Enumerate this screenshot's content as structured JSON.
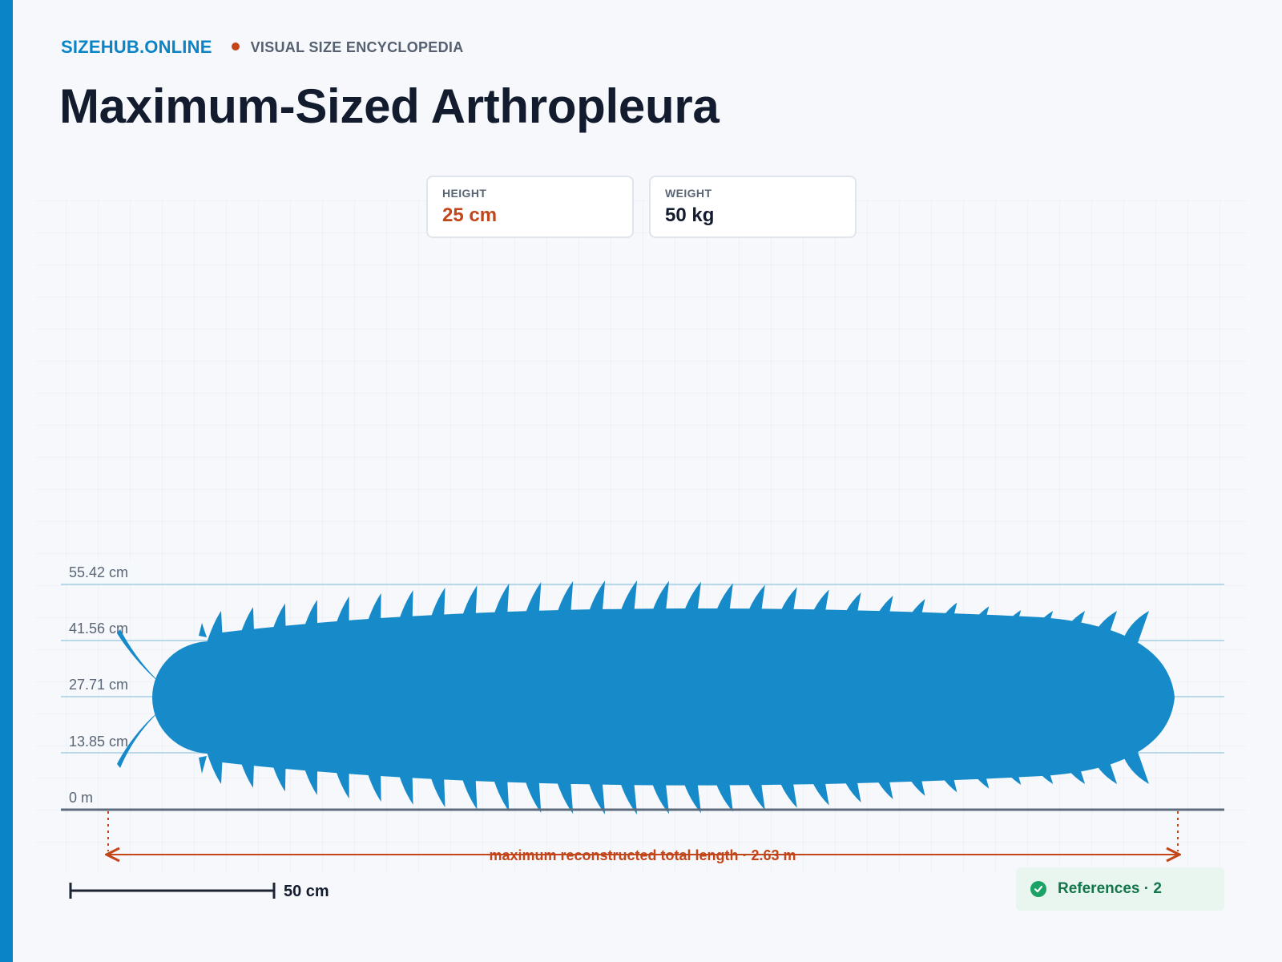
{
  "header": {
    "brand": "SIZEHUB.ONLINE",
    "tagline": "VISUAL SIZE ENCYCLOPEDIA",
    "title": "Maximum-Sized Arthropleura"
  },
  "stats": {
    "height_label": "HEIGHT",
    "height_value": "25 cm",
    "weight_label": "WEIGHT",
    "weight_value": "50 kg"
  },
  "scale": {
    "levels": [
      "55.42 cm",
      "41.56 cm",
      "27.71 cm",
      "13.85 cm",
      "0 m"
    ],
    "length_caption": "maximum reconstructed total length · 2.63 m",
    "scale_bar_label": "50 cm"
  },
  "references": {
    "label": "References · 2"
  },
  "colors": {
    "accent": "#0a84c6",
    "highlight": "#c2461a",
    "silhouette": "#178bc9",
    "text_dark": "#131c2e",
    "success": "#1aa364"
  },
  "icons": {
    "references": "check-circle-icon"
  }
}
